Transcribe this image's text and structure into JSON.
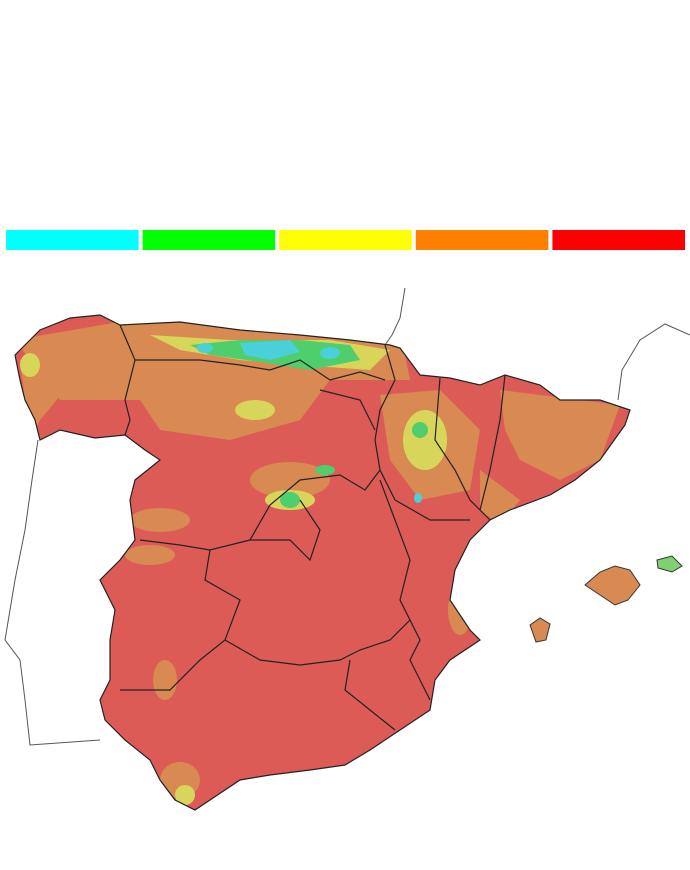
{
  "legend": {
    "colors": [
      "#00ffff",
      "#00ff00",
      "#ffff00",
      "#ff8000",
      "#ff0000"
    ]
  }
}
